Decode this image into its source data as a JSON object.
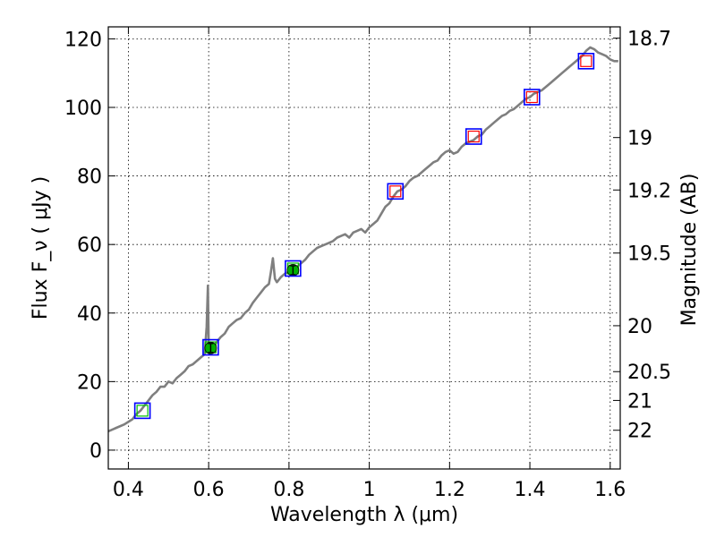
{
  "chart_data": {
    "type": "line",
    "xlabel": "Wavelength  λ (μm)",
    "ylabel": "Flux  F_ν  ( μJy )",
    "y2label": "Magnitude (AB)",
    "xlim": [
      0.35,
      1.625
    ],
    "ylim": [
      -5.5,
      123.5
    ],
    "grid": true,
    "x_ticks": [
      0.4,
      0.6,
      0.8,
      1.0,
      1.2,
      1.4,
      1.6
    ],
    "x_tick_labels": [
      "0.4",
      "0.6",
      "0.8",
      "1",
      "1.2",
      "1.4",
      "1.6"
    ],
    "y_ticks": [
      0,
      20,
      40,
      60,
      80,
      100,
      120
    ],
    "y_tick_labels": [
      "0",
      "20",
      "40",
      "60",
      "80",
      "100",
      "120"
    ],
    "y2_ticks": [
      {
        "label": "18.7",
        "flux": 120.2
      },
      {
        "label": "19",
        "flux": 91.2
      },
      {
        "label": "19.2",
        "flux": 75.9
      },
      {
        "label": "19.5",
        "flux": 57.5
      },
      {
        "label": "20",
        "flux": 36.3
      },
      {
        "label": "20.5",
        "flux": 22.9
      },
      {
        "label": "21",
        "flux": 14.5
      },
      {
        "label": "22",
        "flux": 5.8
      }
    ],
    "series": [
      {
        "kind": "spectrum",
        "color": "#7f7f7f",
        "x": [
          0.35,
          0.37,
          0.39,
          0.41,
          0.42,
          0.43,
          0.44,
          0.45,
          0.46,
          0.47,
          0.48,
          0.49,
          0.5,
          0.51,
          0.52,
          0.53,
          0.54,
          0.55,
          0.56,
          0.57,
          0.58,
          0.59,
          0.595,
          0.598,
          0.6,
          0.602,
          0.605,
          0.61,
          0.62,
          0.63,
          0.64,
          0.65,
          0.66,
          0.67,
          0.68,
          0.69,
          0.7,
          0.71,
          0.72,
          0.73,
          0.74,
          0.75,
          0.755,
          0.76,
          0.765,
          0.77,
          0.78,
          0.79,
          0.8,
          0.81,
          0.82,
          0.83,
          0.84,
          0.85,
          0.86,
          0.87,
          0.88,
          0.89,
          0.9,
          0.91,
          0.92,
          0.93,
          0.94,
          0.95,
          0.96,
          0.97,
          0.98,
          0.99,
          1.0,
          1.01,
          1.02,
          1.03,
          1.04,
          1.05,
          1.06,
          1.07,
          1.08,
          1.09,
          1.1,
          1.11,
          1.12,
          1.13,
          1.14,
          1.15,
          1.16,
          1.17,
          1.18,
          1.19,
          1.2,
          1.21,
          1.22,
          1.23,
          1.24,
          1.25,
          1.26,
          1.27,
          1.28,
          1.29,
          1.3,
          1.31,
          1.32,
          1.33,
          1.34,
          1.35,
          1.36,
          1.37,
          1.38,
          1.39,
          1.4,
          1.41,
          1.42,
          1.43,
          1.44,
          1.45,
          1.46,
          1.47,
          1.48,
          1.49,
          1.5,
          1.51,
          1.52,
          1.53,
          1.54,
          1.55,
          1.56,
          1.57,
          1.58,
          1.59,
          1.6,
          1.61,
          1.62
        ],
        "y": [
          5.5,
          6.5,
          7.5,
          9.0,
          10.5,
          11.5,
          13.0,
          14.5,
          16.0,
          17.0,
          18.5,
          18.5,
          20.0,
          19.5,
          21.0,
          22.0,
          23.0,
          24.5,
          25.0,
          26.0,
          27.0,
          28.0,
          36.0,
          48.0,
          30.0,
          28.0,
          29.0,
          30.0,
          31.5,
          33.0,
          34.0,
          36.0,
          37.0,
          38.0,
          38.5,
          40.0,
          41.0,
          43.0,
          44.5,
          46.0,
          47.5,
          48.5,
          52.0,
          56.0,
          50.0,
          49.0,
          50.5,
          51.5,
          52.0,
          53.0,
          53.5,
          54.5,
          55.5,
          57.0,
          58.0,
          59.0,
          59.5,
          60.0,
          60.5,
          61.0,
          62.0,
          62.5,
          63.0,
          62.0,
          63.5,
          64.0,
          64.5,
          63.5,
          65.0,
          66.0,
          67.0,
          69.0,
          71.0,
          72.0,
          74.0,
          75.5,
          76.0,
          77.0,
          78.5,
          79.5,
          80.0,
          81.0,
          82.0,
          83.0,
          84.0,
          84.5,
          86.0,
          87.0,
          87.5,
          86.5,
          87.0,
          88.5,
          89.5,
          90.0,
          90.5,
          91.5,
          92.0,
          93.5,
          94.5,
          95.5,
          96.5,
          97.5,
          98.0,
          99.0,
          99.5,
          100.5,
          101.5,
          102.5,
          103.0,
          104.0,
          104.5,
          105.0,
          106.0,
          107.0,
          108.0,
          109.0,
          110.0,
          111.0,
          112.0,
          113.0,
          114.0,
          115.0,
          116.5,
          117.5,
          117.0,
          116.0,
          115.5,
          115.0,
          114.0,
          113.5,
          113.5
        ]
      },
      {
        "kind": "model-points",
        "marker": "square",
        "color": "#0000ff",
        "x": [
          0.435,
          0.605,
          0.81,
          1.065,
          1.26,
          1.405,
          1.54
        ],
        "y": [
          11.5,
          30.0,
          53.0,
          75.5,
          91.5,
          103.0,
          113.5
        ]
      },
      {
        "kind": "observed-points",
        "marker": "circle",
        "color": "#00b000",
        "x": [
          0.605,
          0.81
        ],
        "y": [
          29.8,
          52.5
        ]
      },
      {
        "kind": "inner-squares",
        "marker": "square",
        "colors": [
          "#00c000",
          "#00c000",
          "#00c000",
          "#ff0000",
          "#ff0000",
          "#ff0000",
          "#ff0000"
        ],
        "x": [
          0.435,
          0.605,
          0.81,
          1.065,
          1.26,
          1.405,
          1.54
        ],
        "y": [
          11.5,
          30.0,
          53.0,
          75.5,
          91.5,
          103.0,
          113.5
        ]
      }
    ]
  }
}
